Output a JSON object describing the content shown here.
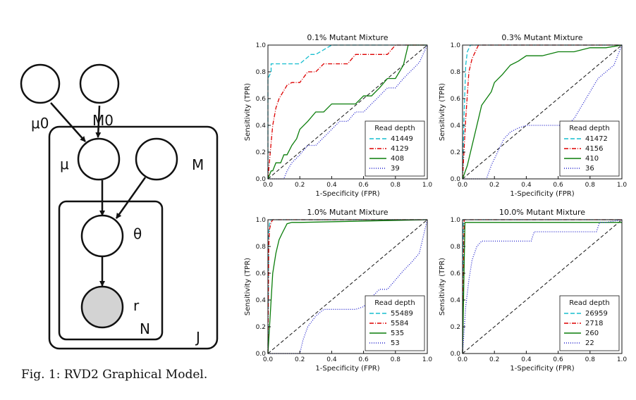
{
  "model": {
    "labels": {
      "mu0": "μ0",
      "M0": "M0",
      "mu": "μ",
      "M": "M",
      "theta": "θ",
      "r": "r",
      "N": "N",
      "J": "J"
    },
    "caption": "Fig. 1: RVD2 Graphical Model."
  },
  "chart_data": [
    {
      "type": "line",
      "title": "0.1% Mutant Mixture",
      "xlabel": "1-Specificity (FPR)",
      "ylabel": "Sensitivity (TPR)",
      "xlim": [
        0,
        1.0
      ],
      "ylim": [
        0,
        1.0
      ],
      "xticks": [
        "0.0",
        "0.2",
        "0.4",
        "0.6",
        "0.8",
        "1.0"
      ],
      "yticks": [
        "0.0",
        "0.2",
        "0.4",
        "0.6",
        "0.8",
        "1.0"
      ],
      "legend_title": "Read depth",
      "legend_position": "lower-right",
      "diagonal": true,
      "series": [
        {
          "name": "41449",
          "color": "#17becf",
          "dash": "6,3",
          "x": [
            0,
            0,
            0.02,
            0.02,
            0.05,
            0.05,
            0.2,
            0.27,
            0.3,
            0.4,
            0.5,
            1.0
          ],
          "y": [
            0,
            0.75,
            0.8,
            0.86,
            0.86,
            0.86,
            0.86,
            0.93,
            0.93,
            1.0,
            1.0,
            1.0
          ]
        },
        {
          "name": "4129",
          "color": "#dd0000",
          "dash": "6,2,1,2",
          "x": [
            0,
            0.02,
            0.03,
            0.05,
            0.07,
            0.1,
            0.12,
            0.15,
            0.2,
            0.25,
            0.3,
            0.35,
            0.4,
            0.45,
            0.5,
            0.55,
            0.6,
            0.7,
            0.75,
            0.8,
            0.85,
            1.0
          ],
          "y": [
            0,
            0.27,
            0.4,
            0.53,
            0.6,
            0.66,
            0.7,
            0.72,
            0.72,
            0.8,
            0.8,
            0.86,
            0.86,
            0.86,
            0.86,
            0.93,
            0.93,
            0.93,
            0.93,
            1.0,
            1.0,
            1.0
          ]
        },
        {
          "name": "408",
          "color": "#0a7d0a",
          "dash": "",
          "x": [
            0,
            0.02,
            0.03,
            0.05,
            0.08,
            0.1,
            0.12,
            0.15,
            0.18,
            0.2,
            0.25,
            0.3,
            0.35,
            0.4,
            0.45,
            0.5,
            0.55,
            0.6,
            0.65,
            0.7,
            0.75,
            0.8,
            0.85,
            0.88,
            0.9,
            1.0
          ],
          "y": [
            0,
            0.06,
            0.06,
            0.12,
            0.12,
            0.18,
            0.18,
            0.25,
            0.3,
            0.37,
            0.43,
            0.5,
            0.5,
            0.56,
            0.56,
            0.56,
            0.56,
            0.62,
            0.62,
            0.68,
            0.75,
            0.75,
            0.85,
            1.0,
            1.0,
            1.0
          ]
        },
        {
          "name": "39",
          "color": "#1f1fcc",
          "dash": "1,2",
          "x": [
            0,
            0.1,
            0.12,
            0.15,
            0.2,
            0.25,
            0.3,
            0.35,
            0.4,
            0.45,
            0.5,
            0.55,
            0.6,
            0.65,
            0.7,
            0.75,
            0.8,
            0.85,
            0.9,
            0.95,
            1.0
          ],
          "y": [
            0,
            0.0,
            0.06,
            0.12,
            0.18,
            0.25,
            0.25,
            0.31,
            0.37,
            0.43,
            0.43,
            0.5,
            0.5,
            0.56,
            0.62,
            0.68,
            0.68,
            0.75,
            0.81,
            0.87,
            1.0
          ]
        }
      ]
    },
    {
      "type": "line",
      "title": "0.3% Mutant Mixture",
      "xlabel": "1-Specificity (FPR)",
      "ylabel": "Sensitivity (TPR)",
      "xlim": [
        0,
        1.0
      ],
      "ylim": [
        0,
        1.0
      ],
      "xticks": [
        "0.0",
        "0.2",
        "0.4",
        "0.6",
        "0.8",
        "1.0"
      ],
      "yticks": [
        "0.0",
        "0.2",
        "0.4",
        "0.6",
        "0.8",
        "1.0"
      ],
      "legend_title": "Read depth",
      "legend_position": "lower-right",
      "diagonal": true,
      "series": [
        {
          "name": "41472",
          "color": "#17becf",
          "dash": "6,3",
          "x": [
            0,
            0.01,
            0.02,
            0.03,
            0.05,
            1.0
          ],
          "y": [
            0,
            0.5,
            0.85,
            0.95,
            1.0,
            1.0
          ]
        },
        {
          "name": "4156",
          "color": "#dd0000",
          "dash": "6,2,1,2",
          "x": [
            0,
            0.02,
            0.04,
            0.06,
            0.08,
            0.1,
            1.0
          ],
          "y": [
            0,
            0.45,
            0.8,
            0.9,
            0.95,
            1.0,
            1.0
          ]
        },
        {
          "name": "410",
          "color": "#0a7d0a",
          "dash": "",
          "x": [
            0,
            0.03,
            0.05,
            0.08,
            0.1,
            0.12,
            0.15,
            0.18,
            0.2,
            0.25,
            0.3,
            0.35,
            0.4,
            0.5,
            0.6,
            0.7,
            0.8,
            0.9,
            1.0
          ],
          "y": [
            0,
            0.1,
            0.2,
            0.35,
            0.45,
            0.55,
            0.6,
            0.65,
            0.72,
            0.78,
            0.85,
            0.88,
            0.92,
            0.92,
            0.95,
            0.95,
            0.98,
            0.98,
            1.0
          ]
        },
        {
          "name": "36",
          "color": "#1f1fcc",
          "dash": "1,2",
          "x": [
            0,
            0.15,
            0.18,
            0.22,
            0.26,
            0.3,
            0.35,
            0.4,
            0.5,
            0.6,
            0.65,
            0.7,
            0.75,
            0.8,
            0.85,
            0.9,
            0.95,
            1.0
          ],
          "y": [
            0,
            0.0,
            0.1,
            0.2,
            0.3,
            0.35,
            0.38,
            0.4,
            0.4,
            0.4,
            0.4,
            0.45,
            0.55,
            0.65,
            0.75,
            0.8,
            0.85,
            1.0
          ]
        }
      ]
    },
    {
      "type": "line",
      "title": "1.0% Mutant Mixture",
      "xlabel": "1-Specificity (FPR)",
      "ylabel": "Sensitivity (TPR)",
      "xlim": [
        0,
        1.0
      ],
      "ylim": [
        0,
        1.0
      ],
      "xticks": [
        "0.0",
        "0.2",
        "0.4",
        "0.6",
        "0.8",
        "1.0"
      ],
      "yticks": [
        "0.0",
        "0.2",
        "0.4",
        "0.6",
        "0.8",
        "1.0"
      ],
      "legend_title": "Read depth",
      "legend_position": "lower-right",
      "diagonal": true,
      "series": [
        {
          "name": "55489",
          "color": "#17becf",
          "dash": "6,3",
          "x": [
            0,
            0.005,
            0.01,
            0.02,
            1.0
          ],
          "y": [
            0,
            0.9,
            0.97,
            1.0,
            1.0
          ]
        },
        {
          "name": "5584",
          "color": "#dd0000",
          "dash": "6,2,1,2",
          "x": [
            0,
            0.005,
            0.01,
            0.02,
            0.03,
            1.0
          ],
          "y": [
            0,
            0.8,
            0.93,
            0.98,
            1.0,
            1.0
          ]
        },
        {
          "name": "535",
          "color": "#0a7d0a",
          "dash": "",
          "x": [
            0,
            0.02,
            0.03,
            0.05,
            0.07,
            0.09,
            0.12,
            0.15,
            0.2,
            1.0
          ],
          "y": [
            0,
            0.4,
            0.6,
            0.75,
            0.85,
            0.9,
            0.97,
            0.98,
            0.98,
            1.0
          ]
        },
        {
          "name": "53",
          "color": "#1f1fcc",
          "dash": "1,2",
          "x": [
            0,
            0.2,
            0.22,
            0.25,
            0.3,
            0.35,
            0.45,
            0.55,
            0.6,
            0.65,
            0.7,
            0.75,
            0.8,
            0.85,
            0.9,
            0.95,
            0.97,
            1.0
          ],
          "y": [
            0,
            0.0,
            0.1,
            0.2,
            0.28,
            0.33,
            0.33,
            0.33,
            0.35,
            0.42,
            0.48,
            0.48,
            0.55,
            0.62,
            0.68,
            0.75,
            0.85,
            1.0
          ]
        }
      ]
    },
    {
      "type": "line",
      "title": "10.0% Mutant Mixture",
      "xlabel": "1-Specificity (FPR)",
      "ylabel": "Sensitivity (TPR)",
      "xlim": [
        0,
        1.0
      ],
      "ylim": [
        0,
        1.0
      ],
      "xticks": [
        "0.0",
        "0.2",
        "0.4",
        "0.6",
        "0.8",
        "1.0"
      ],
      "yticks": [
        "0.0",
        "0.2",
        "0.4",
        "0.6",
        "0.8",
        "1.0"
      ],
      "legend_title": "Read depth",
      "legend_position": "lower-right",
      "diagonal": true,
      "series": [
        {
          "name": "26959",
          "color": "#17becf",
          "dash": "6,3",
          "x": [
            0,
            0.005,
            1.0
          ],
          "y": [
            0,
            1.0,
            1.0
          ]
        },
        {
          "name": "2718",
          "color": "#dd0000",
          "dash": "6,2,1,2",
          "x": [
            0,
            0.01,
            1.0
          ],
          "y": [
            0,
            1.0,
            1.0
          ]
        },
        {
          "name": "260",
          "color": "#0a7d0a",
          "dash": "",
          "x": [
            0,
            0.015,
            0.02,
            1.0
          ],
          "y": [
            0,
            0.98,
            0.98,
            0.98
          ]
        },
        {
          "name": "22",
          "color": "#1f1fcc",
          "dash": "1,2",
          "x": [
            0,
            0.02,
            0.04,
            0.06,
            0.09,
            0.12,
            0.2,
            0.3,
            0.43,
            0.45,
            0.6,
            0.7,
            0.84,
            0.86,
            0.9,
            1.0
          ],
          "y": [
            0,
            0.35,
            0.55,
            0.7,
            0.8,
            0.84,
            0.84,
            0.84,
            0.84,
            0.91,
            0.91,
            0.91,
            0.91,
            0.98,
            0.98,
            1.0
          ]
        }
      ]
    }
  ]
}
